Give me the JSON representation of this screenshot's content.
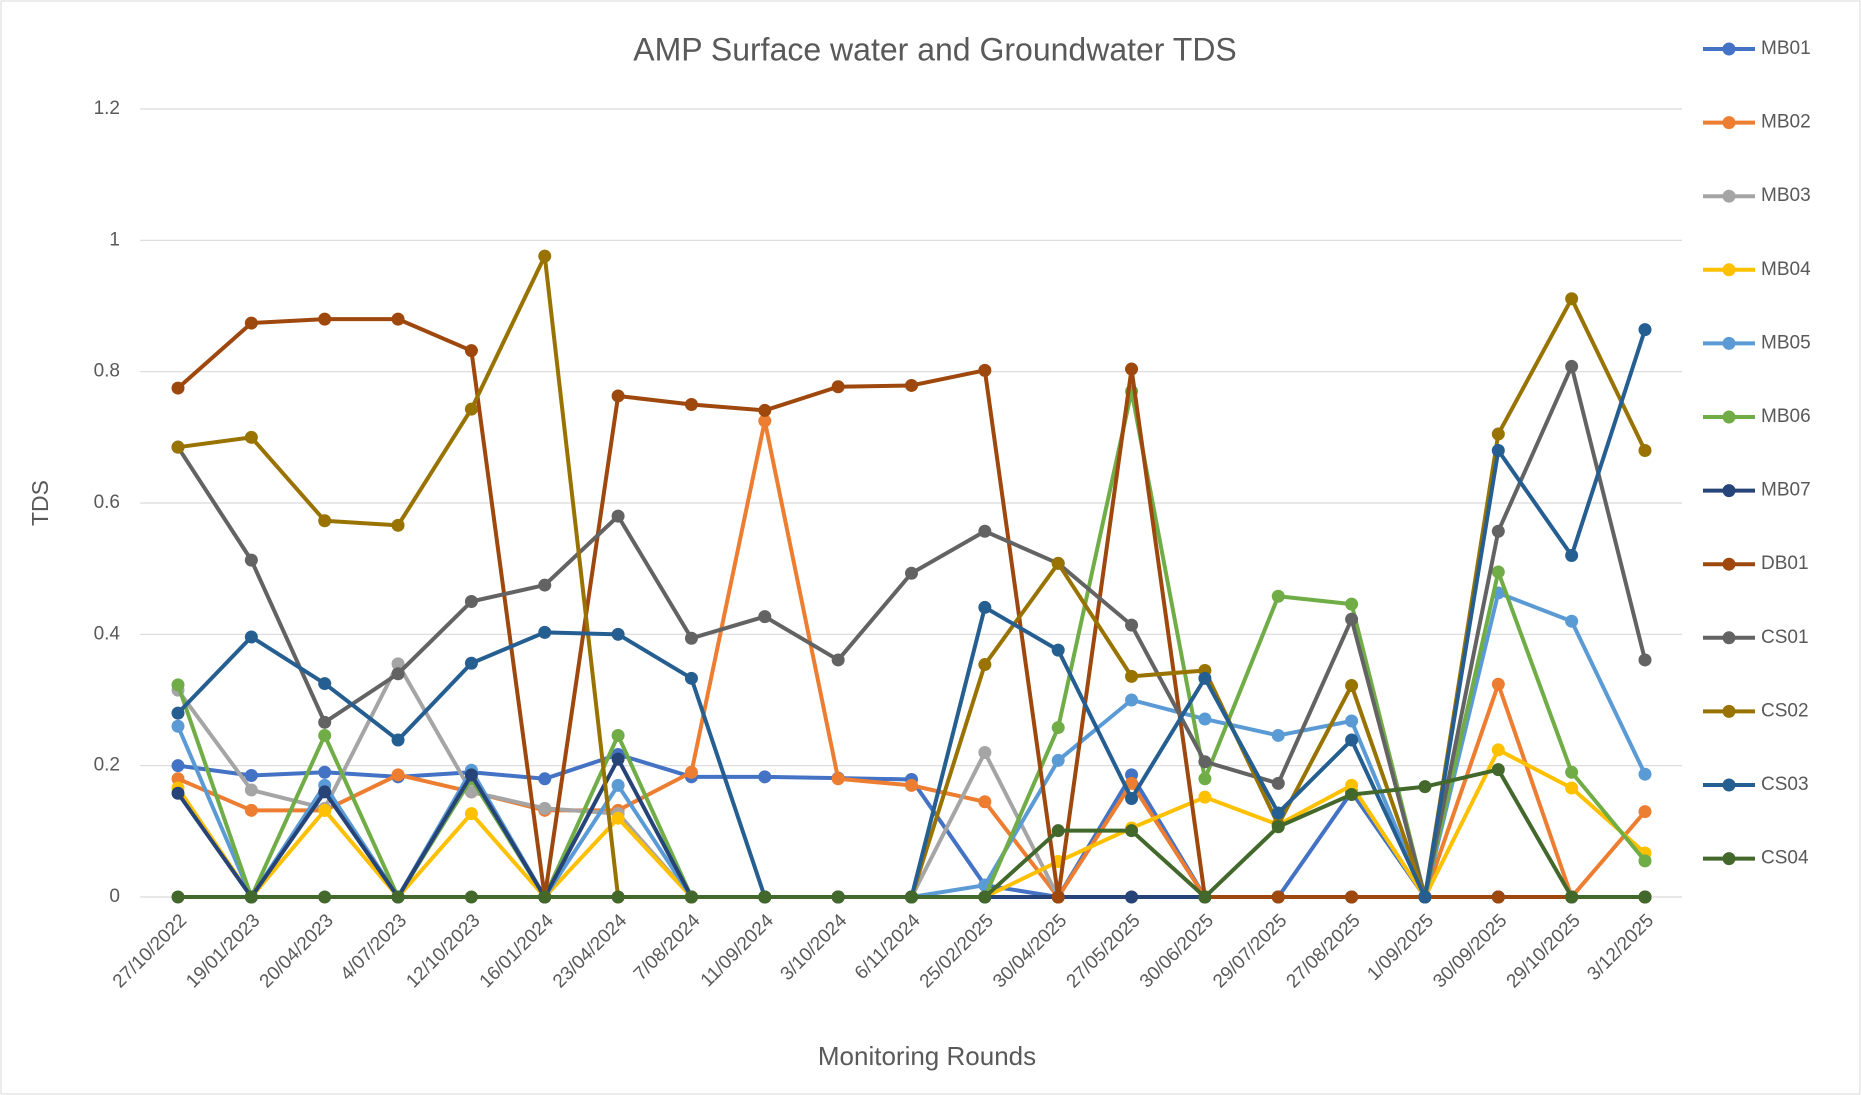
{
  "chart_data": {
    "type": "line",
    "title": "AMP Surface water and Groundwater TDS",
    "x_label": "Monitoring Rounds",
    "y_label": "TDS",
    "categories": [
      "27/10/2022",
      "19/01/2023",
      "20/04/2023",
      "4/07/2023",
      "12/10/2023",
      "16/01/2024",
      "23/04/2024",
      "7/08/2024",
      "11/09/2024",
      "3/10/2024",
      "6/11/2024",
      "25/02/2025",
      "30/04/2025",
      "27/05/2025",
      "30/06/2025",
      "29/07/2025",
      "27/08/2025",
      "1/09/2025",
      "30/09/2025",
      "29/10/2025",
      "3/12/2025"
    ],
    "ylim": [
      0,
      1.2
    ],
    "yticks": [
      0,
      0.2,
      0.4,
      0.6,
      0.8,
      1,
      1.2
    ],
    "grid": true,
    "legend": "right",
    "series": [
      {
        "name": "MB01",
        "color": "#4472c4",
        "values": [
          0.2,
          0.185,
          0.19,
          0.183,
          0.19,
          0.18,
          0.217,
          0.183,
          0.183,
          0.181,
          0.179,
          0.018,
          0,
          0.186,
          0,
          0,
          0.16,
          0,
          0,
          0,
          0
        ]
      },
      {
        "name": "MB02",
        "color": "#ed7d31",
        "values": [
          0.18,
          0.132,
          0.132,
          0.186,
          0.16,
          0.132,
          0.132,
          0.19,
          0.725,
          0.18,
          0.17,
          0.145,
          0,
          0.173,
          0,
          0,
          0,
          0,
          0.324,
          0,
          0.13
        ]
      },
      {
        "name": "MB03",
        "color": "#a5a5a5",
        "values": [
          0.315,
          0.163,
          0.135,
          0.355,
          0.16,
          0.135,
          0.127,
          0,
          0,
          0,
          0,
          0.22,
          0,
          0,
          0,
          0,
          0,
          0,
          0,
          0,
          0
        ]
      },
      {
        "name": "MB04",
        "color": "#ffc000",
        "values": [
          0.166,
          0,
          0.132,
          0,
          0.127,
          0,
          0.12,
          0,
          0,
          0,
          0,
          0,
          0.054,
          0.105,
          0.152,
          0.11,
          0.17,
          0,
          0.224,
          0.166,
          0.067
        ]
      },
      {
        "name": "MB05",
        "color": "#5b9bd5",
        "values": [
          0.26,
          0,
          0.17,
          0,
          0.193,
          0,
          0.17,
          0,
          0,
          0,
          0,
          0.018,
          0.208,
          0.3,
          0.271,
          0.246,
          0.268,
          0,
          0.463,
          0.42,
          0.187
        ]
      },
      {
        "name": "MB06",
        "color": "#70ad47",
        "values": [
          0.323,
          0,
          0.246,
          0,
          0.18,
          0,
          0.246,
          0,
          0,
          0,
          0,
          0,
          0.258,
          0.77,
          0.18,
          0.458,
          0.446,
          0,
          0.495,
          0.19,
          0.055
        ]
      },
      {
        "name": "MB07",
        "color": "#264478",
        "values": [
          0.158,
          0,
          0.16,
          0,
          0.186,
          0,
          0.21,
          0,
          0,
          0,
          0,
          0,
          0,
          0,
          0,
          0,
          0,
          0,
          0,
          0,
          0
        ]
      },
      {
        "name": "DB01",
        "color": "#9e480e",
        "values": [
          0.775,
          0.874,
          0.88,
          0.88,
          0.832,
          0,
          0.763,
          0.75,
          0.741,
          0.777,
          0.779,
          0.802,
          0,
          0.804,
          0,
          0,
          0,
          0,
          0,
          0,
          0
        ]
      },
      {
        "name": "CS01",
        "color": "#636363",
        "values": [
          0.685,
          0.513,
          0.266,
          0.34,
          0.45,
          0.475,
          0.58,
          0.394,
          0.427,
          0.361,
          0.493,
          0.557,
          0.508,
          0.414,
          0.206,
          0.173,
          0.423,
          0,
          0.557,
          0.808,
          0.361
        ]
      },
      {
        "name": "CS02",
        "color": "#997300",
        "values": [
          0.685,
          0.7,
          0.573,
          0.566,
          0.743,
          0.976,
          0,
          0,
          0,
          0,
          0,
          0.354,
          0.508,
          0.336,
          0.345,
          0.11,
          0.322,
          0,
          0.705,
          0.911,
          0.68
        ]
      },
      {
        "name": "CS03",
        "color": "#255e91",
        "values": [
          0.28,
          0.396,
          0.325,
          0.239,
          0.356,
          0.403,
          0.4,
          0.333,
          0,
          0,
          0,
          0.441,
          0.376,
          0.15,
          0.333,
          0.128,
          0.239,
          0,
          0.68,
          0.52,
          0.864
        ]
      },
      {
        "name": "CS04",
        "color": "#43682b",
        "values": [
          0,
          0,
          0,
          0,
          0,
          0,
          0,
          0,
          0,
          0,
          0,
          0,
          0.101,
          0.101,
          0,
          0.107,
          0.156,
          0.168,
          0.194,
          0,
          0
        ]
      }
    ]
  }
}
